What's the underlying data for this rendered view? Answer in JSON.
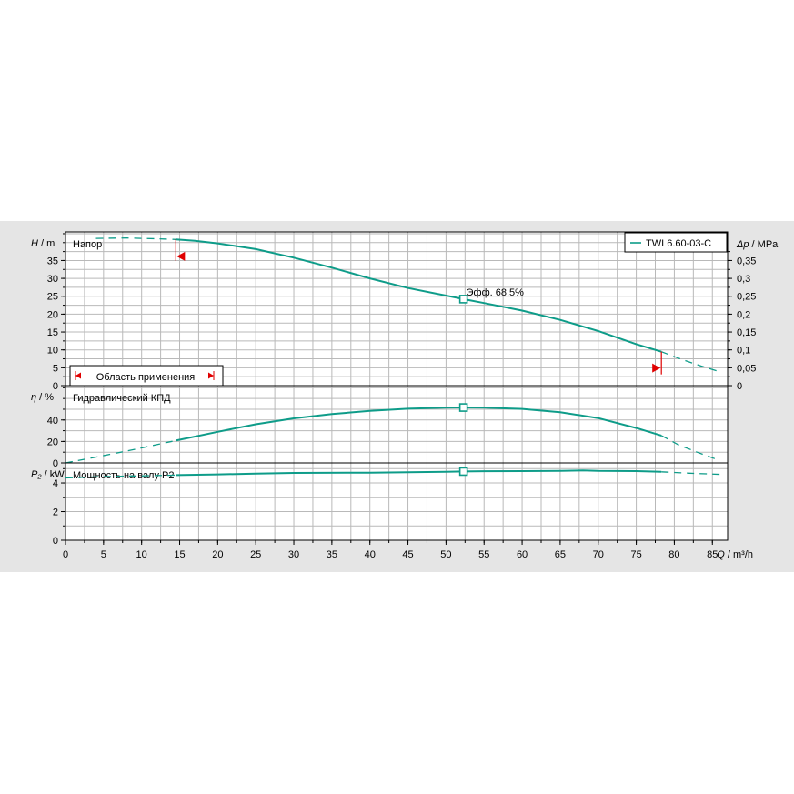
{
  "legend": {
    "label": "TWI 6.60-03-C"
  },
  "application_range": {
    "label": "Область применения"
  },
  "efficiency_annotation": {
    "label": "Эфф.",
    "value": "68,5%"
  },
  "colors": {
    "curve": "#0e9c89",
    "marker_red": "#e00000",
    "panel_bg": "#e5e5e5",
    "plot_bg": "#ffffff",
    "grid": "#b9b9b9"
  },
  "chart_data": {
    "type": "line",
    "x_axis": {
      "label_symbol": "Q",
      "label_unit": "m³/h",
      "range": [
        0,
        87
      ],
      "ticks": [
        "0",
        "5",
        "10",
        "15",
        "20",
        "25",
        "30",
        "35",
        "40",
        "45",
        "50",
        "55",
        "60",
        "65",
        "70",
        "75",
        "80",
        "85"
      ]
    },
    "panels": [
      {
        "id": "head",
        "title": "Напор",
        "y_symbol": "H",
        "y_unit": "m",
        "y_range": [
          0,
          43
        ],
        "y_ticks": [
          "0",
          "5",
          "10",
          "15",
          "20",
          "25",
          "30",
          "35"
        ],
        "right_axis": {
          "symbol": "Δp",
          "unit": "MPa",
          "ticks": [
            "0",
            "0,05",
            "0,1",
            "0,15",
            "0,2",
            "0,25",
            "0,3",
            "0,35"
          ]
        },
        "dashed_points": [
          [
            4,
            41.2
          ],
          [
            8,
            41.3
          ],
          [
            12,
            41.1
          ],
          [
            14.5,
            40.9
          ]
        ],
        "solid_points": [
          [
            14.5,
            40.9
          ],
          [
            17,
            40.5
          ],
          [
            20,
            39.8
          ],
          [
            25,
            38.2
          ],
          [
            30,
            35.8
          ],
          [
            35,
            33.0
          ],
          [
            40,
            30.0
          ],
          [
            45,
            27.3
          ],
          [
            50,
            25.2
          ],
          [
            52.3,
            24.2
          ],
          [
            55,
            23.1
          ],
          [
            60,
            21.0
          ],
          [
            65,
            18.4
          ],
          [
            70,
            15.3
          ],
          [
            75,
            11.6
          ],
          [
            78.3,
            9.5
          ]
        ],
        "dashed_points_end": [
          [
            78.3,
            9.5
          ],
          [
            81,
            7.3
          ],
          [
            83.5,
            5.5
          ],
          [
            85.8,
            4.0
          ]
        ],
        "duty_point": {
          "q": 52.3,
          "value": 24.2
        },
        "range_min_q": 14.5,
        "range_max_q": 78.3
      },
      {
        "id": "efficiency",
        "title": "Гидравлический КПД",
        "y_symbol": "η",
        "y_unit": "%",
        "y_range": [
          0,
          72
        ],
        "y_ticks": [
          "0",
          "20",
          "40"
        ],
        "dashed_points": [
          [
            0,
            0
          ],
          [
            4,
            5.4
          ],
          [
            8,
            11
          ],
          [
            12,
            17
          ],
          [
            14.5,
            20.8
          ]
        ],
        "solid_points": [
          [
            14.5,
            20.8
          ],
          [
            20,
            29
          ],
          [
            25,
            36
          ],
          [
            30,
            41.5
          ],
          [
            35,
            45.5
          ],
          [
            40,
            48.5
          ],
          [
            45,
            50.5
          ],
          [
            50,
            51.5
          ],
          [
            52.3,
            51.6
          ],
          [
            55,
            51.5
          ],
          [
            60,
            50.3
          ],
          [
            65,
            47.3
          ],
          [
            70,
            41.8
          ],
          [
            75,
            32.5
          ],
          [
            78.3,
            25.5
          ]
        ],
        "dashed_points_end": [
          [
            78.3,
            25.5
          ],
          [
            80.5,
            17
          ],
          [
            83,
            10
          ],
          [
            85.5,
            3.5
          ]
        ],
        "duty_point": {
          "q": 52.3,
          "value": 51.6
        }
      },
      {
        "id": "power",
        "title": "Мощность на валу P2",
        "y_symbol": "P₂",
        "y_unit": "kW",
        "y_range": [
          0,
          5.4
        ],
        "y_ticks": [
          "0",
          "2",
          "4"
        ],
        "dashed_points": [
          [
            0,
            4.35
          ],
          [
            5,
            4.45
          ],
          [
            10,
            4.5
          ],
          [
            14.5,
            4.55
          ]
        ],
        "solid_points": [
          [
            14.5,
            4.55
          ],
          [
            20,
            4.6
          ],
          [
            25,
            4.65
          ],
          [
            30,
            4.7
          ],
          [
            40,
            4.72
          ],
          [
            50,
            4.78
          ],
          [
            52.3,
            4.8
          ],
          [
            55,
            4.82
          ],
          [
            60,
            4.83
          ],
          [
            65,
            4.84
          ],
          [
            68,
            4.88
          ],
          [
            70,
            4.85
          ],
          [
            75,
            4.83
          ],
          [
            78.3,
            4.78
          ]
        ],
        "dashed_points_end": [
          [
            78.3,
            4.78
          ],
          [
            82,
            4.68
          ],
          [
            86,
            4.6
          ]
        ],
        "duty_point": {
          "q": 52.3,
          "value": 4.8
        }
      }
    ]
  }
}
